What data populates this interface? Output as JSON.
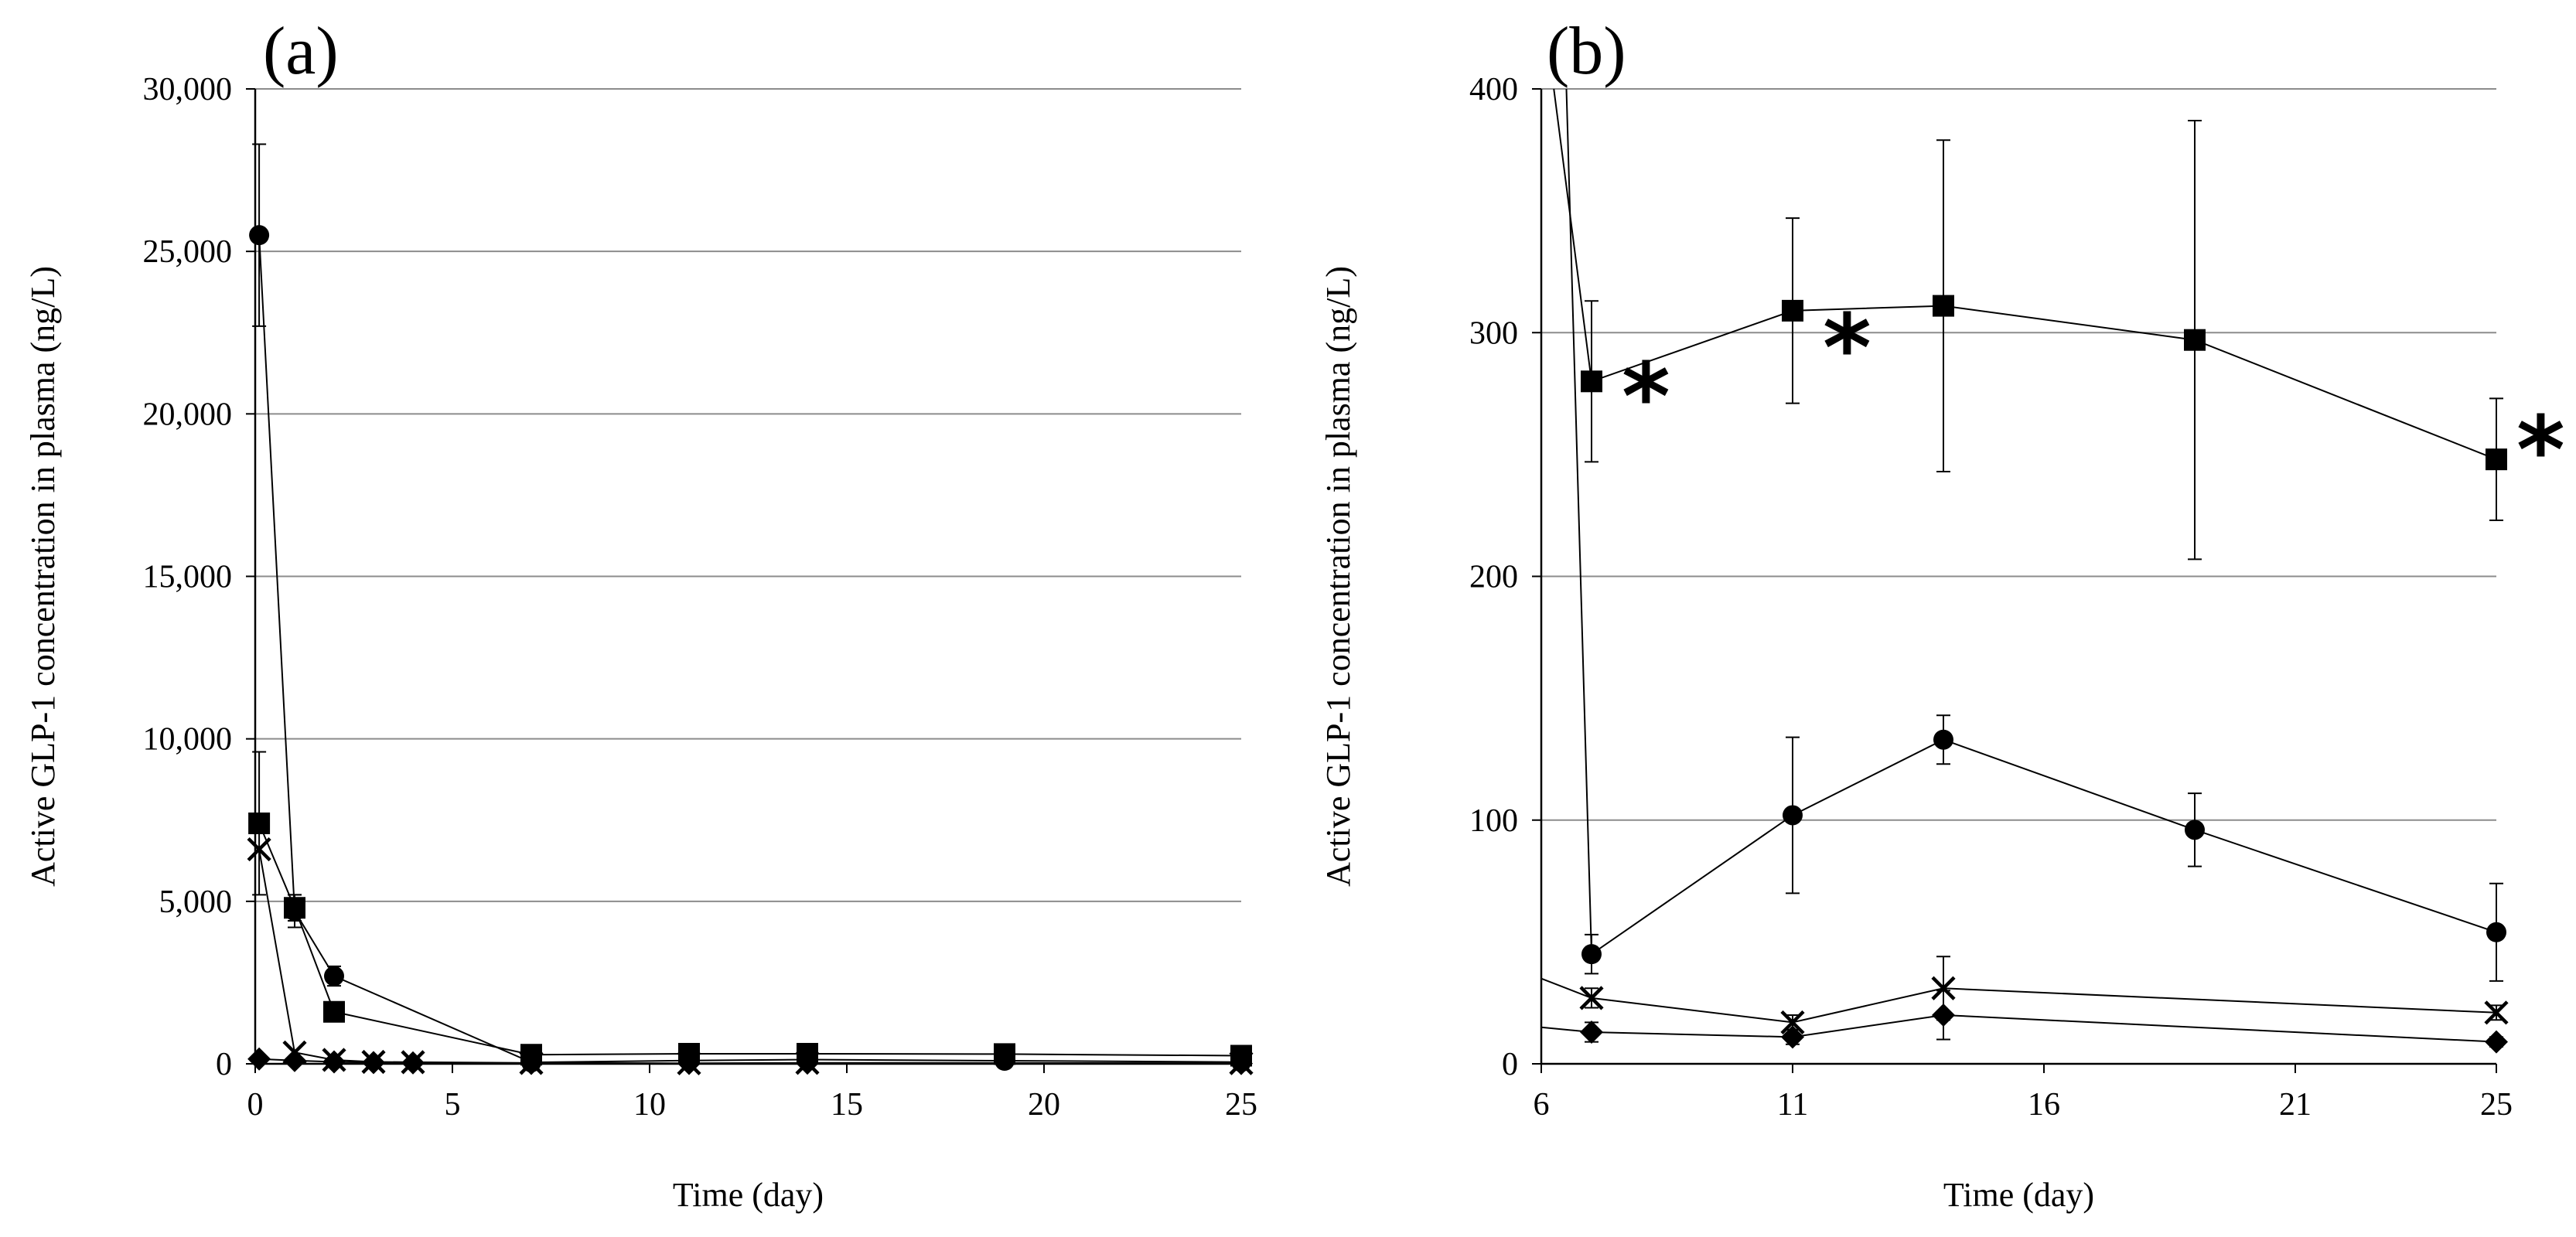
{
  "chart_data": [
    {
      "panel_label": "(a)",
      "type": "line",
      "xlabel": "Time (day)",
      "ylabel": "Active GLP-1 concentration in plasma (ng/L)",
      "xlim": [
        0,
        25
      ],
      "ylim": [
        0,
        30000
      ],
      "xticks": [
        0,
        5,
        10,
        15,
        20,
        25
      ],
      "xtick_labels": [
        "0",
        "5",
        "10",
        "15",
        "20",
        "25"
      ],
      "yticks": [
        0,
        5000,
        10000,
        15000,
        20000,
        25000,
        30000
      ],
      "ytick_labels": [
        "0",
        "5,000",
        "10,000",
        "15,000",
        "20,000",
        "25,000",
        "30,000"
      ],
      "grid": "horizontal",
      "series": [
        {
          "name": "circle",
          "marker": "circle",
          "x": [
            0.1,
            1,
            2,
            7,
            11,
            14,
            19,
            25
          ],
          "y": [
            25500,
            4700,
            2700,
            45,
            100,
            130,
            95,
            55
          ],
          "err": [
            2800,
            500,
            300,
            0,
            0,
            0,
            0,
            0
          ]
        },
        {
          "name": "square",
          "marker": "square",
          "x": [
            0.1,
            1,
            2,
            7,
            11,
            14,
            19,
            25
          ],
          "y": [
            7400,
            4800,
            1600,
            280,
            310,
            310,
            300,
            250
          ],
          "err": [
            2200,
            400,
            250,
            0,
            0,
            0,
            0,
            0
          ]
        },
        {
          "name": "cross",
          "marker": "x",
          "x": [
            0.1,
            1,
            2,
            3,
            4,
            7,
            11,
            14,
            25
          ],
          "y": [
            6600,
            350,
            120,
            60,
            50,
            27,
            17,
            30,
            21
          ],
          "err": [
            0,
            0,
            0,
            0,
            0,
            0,
            0,
            0,
            0
          ]
        },
        {
          "name": "diamond",
          "marker": "diamond",
          "x": [
            0.1,
            1,
            2,
            3,
            4,
            7,
            11,
            14,
            25
          ],
          "y": [
            150,
            100,
            60,
            40,
            30,
            13,
            11,
            20,
            9
          ],
          "err": [
            0,
            0,
            0,
            0,
            0,
            0,
            0,
            0,
            0
          ]
        }
      ],
      "annotations": []
    },
    {
      "panel_label": "(b)",
      "type": "line",
      "xlabel": "Time (day)",
      "ylabel": "Active GLP-1 concentration in plasma (ng/L)",
      "xlim": [
        6,
        25
      ],
      "ylim": [
        0,
        400
      ],
      "xticks": [
        6,
        11,
        16,
        21,
        25
      ],
      "xtick_labels": [
        "6",
        "11",
        "16",
        "21",
        "25"
      ],
      "yticks": [
        0,
        100,
        200,
        300,
        400
      ],
      "ytick_labels": [
        "0",
        "100",
        "200",
        "300",
        "400"
      ],
      "grid": "horizontal",
      "series": [
        {
          "name": "square",
          "marker": "square",
          "x": [
            7,
            11,
            14,
            19,
            25
          ],
          "y": [
            280,
            309,
            311,
            297,
            248
          ],
          "err": [
            33,
            38,
            68,
            90,
            25
          ],
          "lead_from": [
            6.25,
            400
          ]
        },
        {
          "name": "circle",
          "marker": "circle",
          "x": [
            7,
            11,
            14,
            19,
            25
          ],
          "y": [
            45,
            102,
            133,
            96,
            54
          ],
          "err": [
            8,
            32,
            10,
            15,
            20
          ],
          "lead_from": [
            6.5,
            400
          ]
        },
        {
          "name": "cross",
          "marker": "x",
          "x": [
            7,
            11,
            14,
            25
          ],
          "y": [
            27,
            17,
            31,
            21
          ],
          "err": [
            4,
            3,
            13,
            3
          ],
          "lead_from": [
            6,
            35
          ]
        },
        {
          "name": "diamond",
          "marker": "diamond",
          "x": [
            7,
            11,
            14,
            25
          ],
          "y": [
            13,
            11,
            20,
            9
          ],
          "err": [
            4,
            3,
            10,
            2
          ],
          "lead_from": [
            6,
            15
          ]
        }
      ],
      "annotations": [
        {
          "text": "*",
          "x": 7.6,
          "y": 270
        },
        {
          "text": "*",
          "x": 11.6,
          "y": 290
        },
        {
          "text": "*",
          "x": 25.4,
          "y": 248
        }
      ]
    }
  ]
}
